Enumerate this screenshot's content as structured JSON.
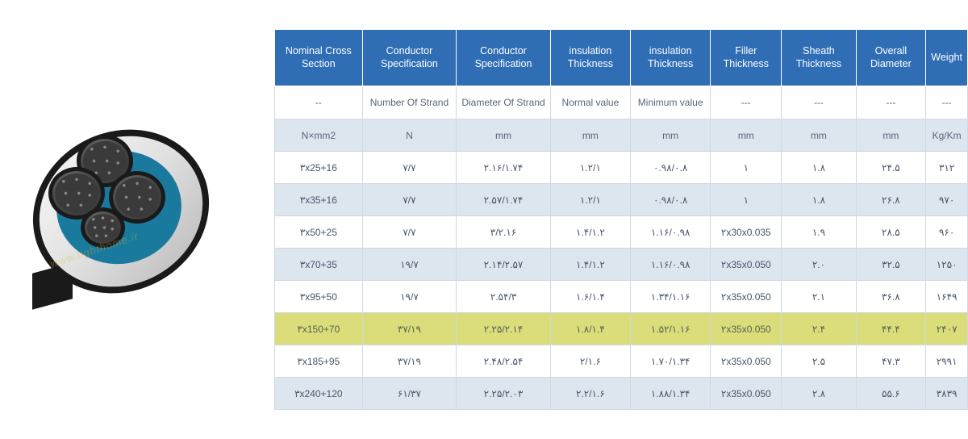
{
  "watermark": "www.lighthome.ir",
  "table": {
    "header_bg": "#2f6db5",
    "header_fg": "#ffffff",
    "row_alt_bg": "#dde5ef",
    "row_bg": "#ffffff",
    "highlight_bg": "#dbdd7a",
    "border_color": "#d0d8e5",
    "columns": [
      "Nominal Cross Section",
      "Conductor Specification",
      "Conductor Specification",
      "insulation Thickness",
      "insulation Thickness",
      "Filler Thickness",
      "Sheath Thickness",
      "Overall Diameter",
      "Weight"
    ],
    "subheader": [
      "--",
      "Number Of Strand",
      "Diameter Of Strand",
      "Normal value",
      "Minimum value",
      "---",
      "---",
      "---",
      "---"
    ],
    "units": [
      "N×mm2",
      "N",
      "mm",
      "mm",
      "mm",
      "mm",
      "mm",
      "mm",
      "Kg/Km"
    ],
    "rows": [
      [
        "٣x25+16",
        "٧/٧",
        "٢.١۶/١.٧۴",
        "١.٢/١",
        "٠.٩٨/٠.٨",
        "١",
        "١.٨",
        "٢۴.۵",
        "٣١٢"
      ],
      [
        "٣x35+16",
        "٧/٧",
        "٢.۵٧/١.٧۴",
        "١.٢/١",
        "٠.٩٨/٠.٨",
        "١",
        "١.٨",
        "٢۶.٨",
        "٩٧٠"
      ],
      [
        "٣x50+25",
        "٧/٧",
        "٣/٢.١۶",
        "١.۴/١.٢",
        "١.١۶/٠.٩٨",
        "٢x30x0.035",
        "١.٩",
        "٢٨.۵",
        "٩۶٠"
      ],
      [
        "٣x70+35",
        "١٩/٧",
        "٢.١۴/٢.۵٧",
        "١.۴/١.٢",
        "١.١۶/٠.٩٨",
        "٢x35x0.050",
        "٢.٠",
        "٣٢.۵",
        "١٢۵٠"
      ],
      [
        "٣x95+50",
        "١٩/٧",
        "٢.۵۴/٣",
        "١.۶/١.۴",
        "١.٣۴/١.١۶",
        "٢x35x0.050",
        "٢.١",
        "٣۶.٨",
        "١۶۴٩"
      ],
      [
        "٣x150+70",
        "٣٧/١٩",
        "٢.٢۵/٢.١۴",
        "١.٨/١.۴",
        "١.۵٢/١.١۶",
        "٢x35x0.050",
        "٢.۴",
        "۴۴.۴",
        "٢۴٠٧"
      ],
      [
        "٣x185+95",
        "٣٧/١٩",
        "٢.۴٨/٢.۵۴",
        "٢/١.۶",
        "١.٧٠/١.٣۴",
        "٢x35x0.050",
        "٢.۵",
        "۴٧.٣",
        "٢٩٩١"
      ],
      [
        "٣x240+120",
        "۶١/٣٧",
        "٢.٢۵/٢.٠٣",
        "٢.٢/١.۶",
        "١.٨٨/١.٣۴",
        "٢x35x0.050",
        "٢.٨",
        "۵۵.۶",
        "٣٨٣٩"
      ]
    ],
    "highlight_index": 5
  }
}
